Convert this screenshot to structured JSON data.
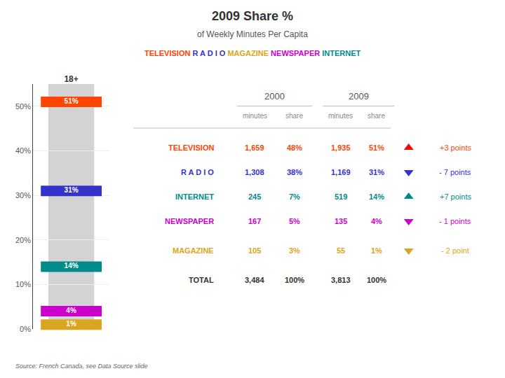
{
  "chart_data": [
    {
      "type": "bar",
      "title": "2009 Share %",
      "subtitle": "of Weekly Minutes Per Capita",
      "subtitle_parts": [
        {
          "text": "TELEVISION",
          "color": "#FF4500"
        },
        {
          "text": " R A D I O ",
          "color": "#3333CC"
        },
        {
          "text": "MAGAZINE",
          "color": "#DAA520"
        },
        {
          "text": " NEWSPAPER",
          "color": "#CC00CC"
        },
        {
          "text": " INTERNET",
          "color": "#008B8B"
        }
      ],
      "categories": [
        "18+"
      ],
      "series": [
        {
          "name": "TELEVISION",
          "color": "#FF4500",
          "values": [
            51
          ],
          "value_labels": [
            "51%"
          ]
        },
        {
          "name": "RADIO",
          "color": "#3333CC",
          "values": [
            31
          ],
          "value_labels": [
            "31%"
          ]
        },
        {
          "name": "INTERNET",
          "color": "#008B8B",
          "values": [
            14
          ],
          "value_labels": [
            "14%"
          ]
        },
        {
          "name": "NEWSPAPER",
          "color": "#CC00CC",
          "values": [
            4
          ],
          "value_labels": [
            "4%"
          ]
        },
        {
          "name": "MAGAZINE",
          "color": "#DAA520",
          "values": [
            1
          ],
          "value_labels": [
            "1%"
          ]
        }
      ],
      "color": "#D3D3D3",
      "ylim": [
        0,
        55
      ],
      "yticks": [
        {
          "value": 0,
          "label": "0%"
        },
        {
          "value": 10,
          "label": "10%"
        },
        {
          "value": 20,
          "label": "20%"
        },
        {
          "value": 30,
          "label": "30%"
        },
        {
          "value": 40,
          "label": "40%"
        },
        {
          "value": 50,
          "label": "50%"
        }
      ],
      "grid": true,
      "data_labels": true,
      "source": "Source: French Canada, see Data Source slide"
    },
    {
      "type": "table",
      "column_groups": [
        {
          "label": "2000",
          "columns": [
            "minutes",
            "share"
          ]
        },
        {
          "label": "2009",
          "columns": [
            "minutes",
            "share"
          ]
        }
      ],
      "rows": [
        {
          "label": "TELEVISION",
          "color": "#FF4500",
          "cells": [
            "1,659",
            "48%",
            "1,935",
            "51%"
          ],
          "arrow": "up",
          "arrow_color": "#FF0000",
          "change": "+3 points",
          "change_color": "#FF4500"
        },
        {
          "label": "R A D I O",
          "color": "#3333CC",
          "cells": [
            "1,308",
            "38%",
            "1,169",
            "31%"
          ],
          "arrow": "down",
          "arrow_color": "#3333CC",
          "change": "- 7 points",
          "change_color": "#3333CC"
        },
        {
          "label": "INTERNET",
          "color": "#008B8B",
          "cells": [
            "245",
            "7%",
            "519",
            "14%"
          ],
          "arrow": "up",
          "arrow_color": "#008B8B",
          "change": "+7 points",
          "change_color": "#008B8B"
        },
        {
          "label": "NEWSPAPER",
          "color": "#CC00CC",
          "cells": [
            "167",
            "5%",
            "135",
            "4%"
          ],
          "arrow": "down",
          "arrow_color": "#CC00CC",
          "change": "- 1 points",
          "change_color": "#CC00CC"
        },
        {
          "label": "MAGAZINE",
          "color": "#DAA520",
          "cells": [
            "105",
            "3%",
            "55",
            "1%"
          ],
          "arrow": "down",
          "arrow_color": "#DAA520",
          "change": "- 2 point",
          "change_color": "#DAA520"
        },
        {
          "label": "TOTAL",
          "color": "#333333",
          "cells": [
            "3,484",
            "100%",
            "3,813",
            "100%"
          ]
        }
      ]
    }
  ]
}
